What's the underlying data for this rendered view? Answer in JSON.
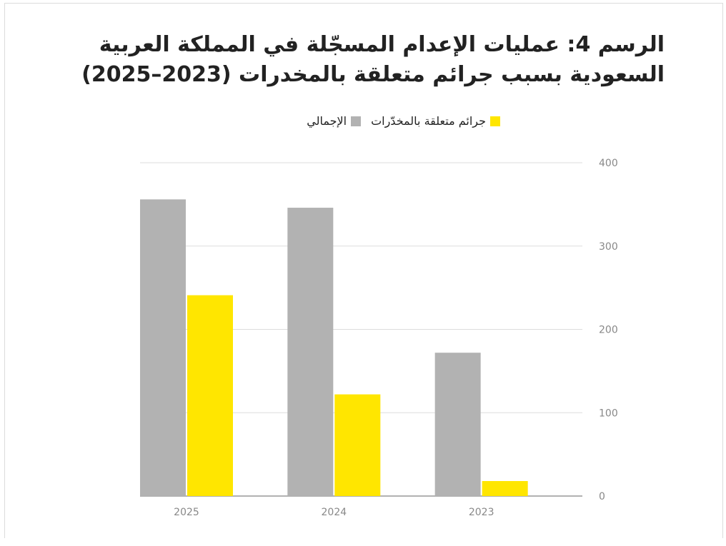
{
  "chart_data": {
    "type": "bar",
    "title": "الرسم 4: عمليات الإعدام المسجّلة في المملكة العربية السعودية بسبب جرائم متعلقة بالمخدرات (2023–2025)",
    "categories": [
      "2025",
      "2024",
      "2023"
    ],
    "series": [
      {
        "name": "الإجمالي",
        "color": "#b2b2b2",
        "values": [
          356,
          346,
          172
        ]
      },
      {
        "name": "جرائم متعلقة بالمخدّرات",
        "color": "#ffe600",
        "values": [
          241,
          122,
          18
        ]
      }
    ],
    "ylim": [
      0,
      400
    ],
    "yticks": [
      "0",
      "100",
      "200",
      "300",
      "400"
    ],
    "y_axis_side": "right",
    "grid": true,
    "legend_position": "top",
    "xlabel": "",
    "ylabel": ""
  }
}
